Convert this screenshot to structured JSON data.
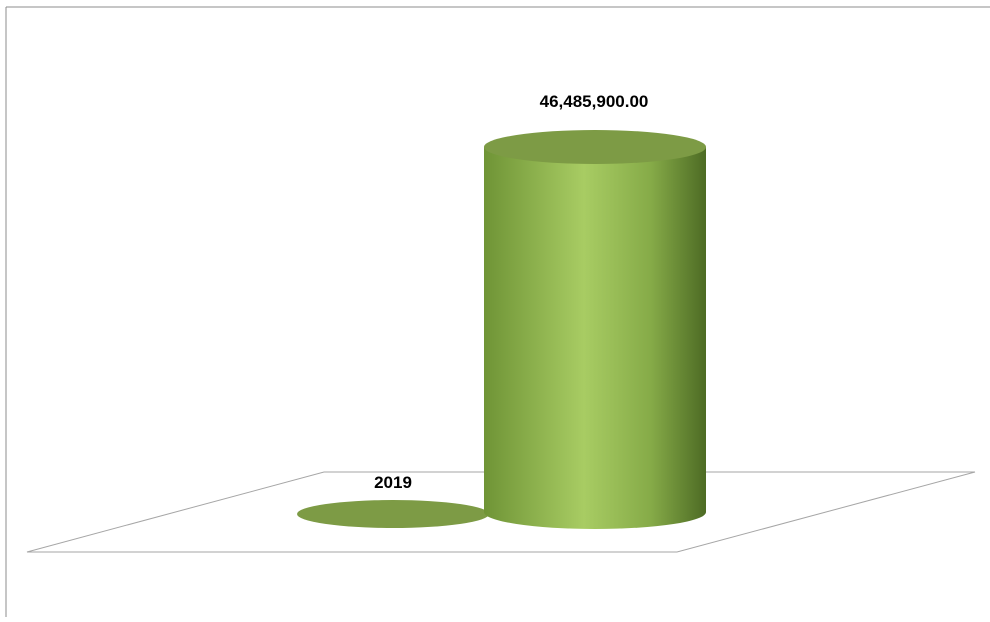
{
  "colors": {
    "bar_light": "#a2c75c",
    "bar_dark": "#5a7a2e",
    "bar_top": "#7d9b45",
    "floor_line": "#a6a6a6",
    "frame_line": "#8c8c8c"
  },
  "chart_data": {
    "type": "bar",
    "style": "3d-cylinder",
    "categories": [
      "",
      ""
    ],
    "series": [
      {
        "values": [
          0,
          46485900.0
        ]
      }
    ],
    "data_labels": [
      "2019",
      "46,485,900.00"
    ],
    "title": "",
    "xlabel": "",
    "ylabel": "",
    "ylim": [
      0,
      46485900.0
    ],
    "grid": false,
    "legend": "none"
  }
}
